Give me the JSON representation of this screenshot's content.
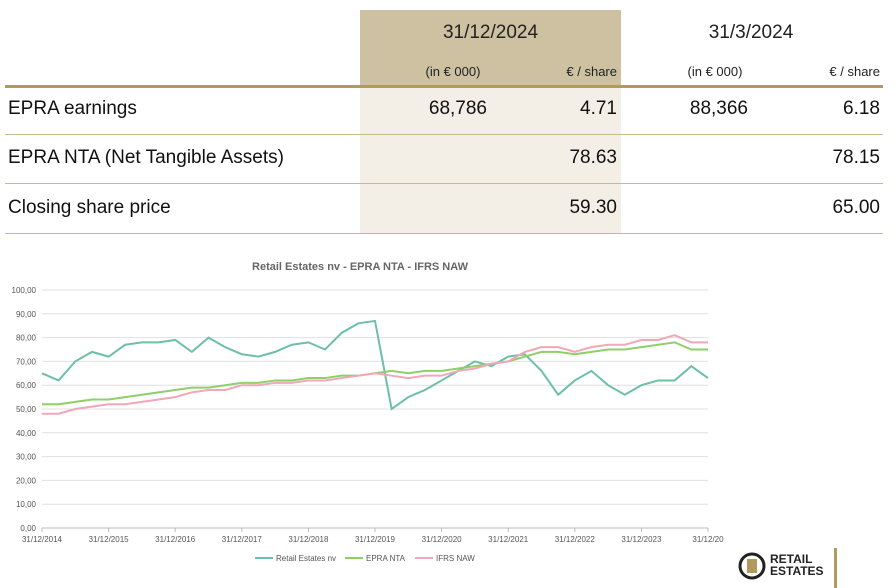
{
  "table": {
    "columns": [
      {
        "date": "31/12/2024",
        "units": [
          "(in € 000)",
          "€ / share"
        ]
      },
      {
        "date": "31/3/2024",
        "units": [
          "(in € 000)",
          "€ / share"
        ]
      }
    ],
    "rows": [
      {
        "label": "EPRA earnings",
        "cur_total": "68,786",
        "cur_share": "4.71",
        "prev_total": "88,366",
        "prev_share": "6.18"
      },
      {
        "label": "EPRA NTA (Net Tangible Assets)",
        "cur_share": "78.63",
        "prev_share": "78.15"
      },
      {
        "label": "Closing share price",
        "cur_share": "59.30",
        "prev_share": "65.00"
      }
    ]
  },
  "chart_data": {
    "type": "line",
    "title": "Retail Estates nv - EPRA NTA - IFRS NAW",
    "x": [
      2015,
      2015.25,
      2015.5,
      2015.75,
      2016,
      2016.25,
      2016.5,
      2016.75,
      2017,
      2017.25,
      2017.5,
      2017.75,
      2018,
      2018.25,
      2018.5,
      2018.75,
      2019,
      2019.25,
      2019.5,
      2019.75,
      2020,
      2020.25,
      2020.5,
      2020.75,
      2021,
      2021.25,
      2021.5,
      2021.75,
      2022,
      2022.25,
      2022.5,
      2022.75,
      2023,
      2023.25,
      2023.5,
      2023.75,
      2024,
      2024.25,
      2024.5,
      2024.75,
      2025
    ],
    "series": [
      {
        "name": "Retail Estates nv",
        "color": "#6cbfa8",
        "values": [
          65,
          62,
          70,
          74,
          72,
          77,
          78,
          78,
          79,
          74,
          80,
          76,
          73,
          72,
          74,
          77,
          78,
          75,
          82,
          86,
          87,
          50,
          55,
          58,
          62,
          66,
          70,
          68,
          72,
          73,
          66,
          56,
          62,
          66,
          60,
          56,
          60,
          62,
          62,
          68,
          63
        ]
      },
      {
        "name": "EPRA NTA",
        "color": "#8fcf6a",
        "values": [
          52,
          52,
          53,
          54,
          54,
          55,
          56,
          57,
          58,
          59,
          59,
          60,
          61,
          61,
          62,
          62,
          63,
          63,
          64,
          64,
          65,
          66,
          65,
          66,
          66,
          67,
          68,
          69,
          70,
          72,
          74,
          74,
          73,
          74,
          75,
          75,
          76,
          77,
          78,
          75,
          75
        ]
      },
      {
        "name": "IFRS NAW",
        "color": "#f0a8b8",
        "values": [
          48,
          48,
          50,
          51,
          52,
          52,
          53,
          54,
          55,
          57,
          58,
          58,
          60,
          60,
          61,
          61,
          62,
          62,
          63,
          64,
          65,
          64,
          63,
          64,
          64,
          66,
          67,
          69,
          70,
          74,
          76,
          76,
          74,
          76,
          77,
          77,
          79,
          79,
          81,
          78,
          78
        ]
      }
    ],
    "xlim": [
      2015,
      2025
    ],
    "xticks": [
      {
        "value": 2015,
        "label": "31/12/2014"
      },
      {
        "value": 2016,
        "label": "31/12/2015"
      },
      {
        "value": 2017,
        "label": "31/12/2016"
      },
      {
        "value": 2018,
        "label": "31/12/2017"
      },
      {
        "value": 2019,
        "label": "31/12/2018"
      },
      {
        "value": 2020,
        "label": "31/12/2019"
      },
      {
        "value": 2021,
        "label": "31/12/2020"
      },
      {
        "value": 2022,
        "label": "31/12/2021"
      },
      {
        "value": 2023,
        "label": "31/12/2022"
      },
      {
        "value": 2024,
        "label": "31/12/2023"
      },
      {
        "value": 2025,
        "label": "31/12/20"
      }
    ],
    "ylim": [
      0,
      100
    ],
    "yticks": [
      {
        "value": 0,
        "label": "0,00"
      },
      {
        "value": 10,
        "label": "10,00"
      },
      {
        "value": 20,
        "label": "20,00"
      },
      {
        "value": 30,
        "label": "30,00"
      },
      {
        "value": 40,
        "label": "40,00"
      },
      {
        "value": 50,
        "label": "50,00"
      },
      {
        "value": 60,
        "label": "60,00"
      },
      {
        "value": 70,
        "label": "70,00"
      },
      {
        "value": 80,
        "label": "80,00"
      },
      {
        "value": 90,
        "label": "90,00"
      },
      {
        "value": {
          "v": 100
        },
        "label": "100,00"
      }
    ],
    "grid": true,
    "legend": "bottom"
  },
  "logo": {
    "line1": "RETAIL",
    "line2": "ESTATES"
  }
}
